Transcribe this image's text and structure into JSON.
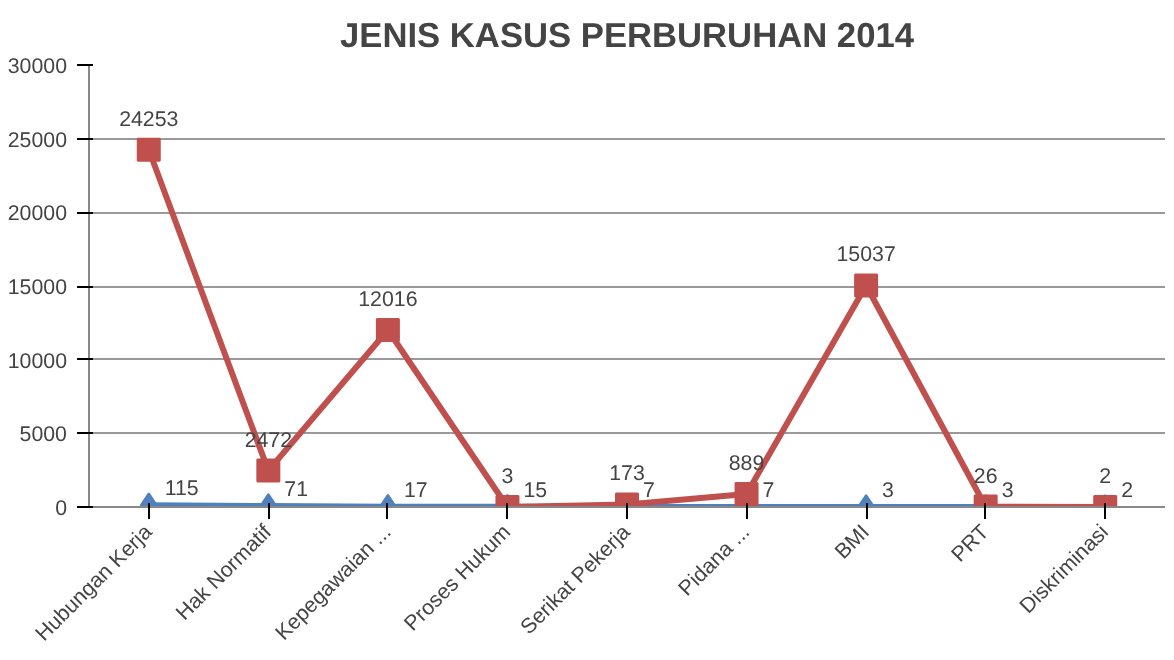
{
  "chart_data": {
    "type": "line",
    "title": "JENIS KASUS PERBURUHAN 2014",
    "categories": [
      "Hubungan Kerja",
      "Hak Normatif",
      "Kepegawaian ...",
      "Proses Hukum",
      "Serikat Pekerja",
      "Pidana ...",
      "BMI",
      "PRT",
      "Diskriminasi"
    ],
    "series": [
      {
        "color": "#4f81bd",
        "marker": "diamond",
        "values": [
          115,
          71,
          17,
          15,
          7,
          7,
          3,
          3,
          2
        ]
      },
      {
        "color": "#c0504d",
        "marker": "square",
        "values": [
          24253,
          2472,
          12016,
          3,
          173,
          889,
          15037,
          26,
          2
        ]
      }
    ],
    "ylim": [
      0,
      30000
    ],
    "yticks": [
      0,
      5000,
      10000,
      15000,
      20000,
      25000,
      30000
    ],
    "grid": "y",
    "data_labels": true
  }
}
